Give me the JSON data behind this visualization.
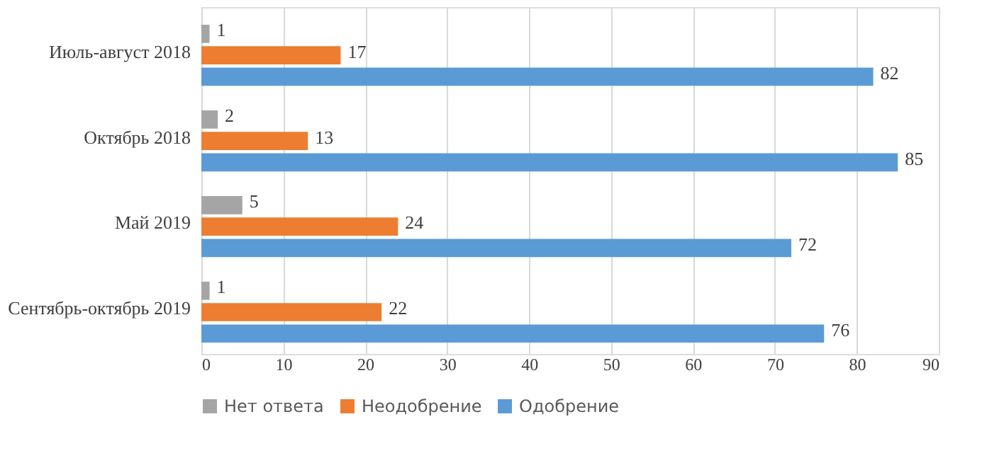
{
  "chart_data": {
    "type": "bar",
    "orientation": "horizontal",
    "categories": [
      "Июль-август 2018",
      "Октябрь 2018",
      "Май 2019",
      "Сентябрь-октябрь 2019"
    ],
    "series": [
      {
        "name": "Нет ответа",
        "color": "#a5a5a5",
        "values": [
          1,
          2,
          5,
          1
        ]
      },
      {
        "name": "Неодобрение",
        "color": "#ed7d31",
        "values": [
          17,
          13,
          24,
          22
        ]
      },
      {
        "name": "Одобрение",
        "color": "#5b9bd5",
        "values": [
          82,
          85,
          72,
          76
        ]
      }
    ],
    "xlim": [
      0,
      90
    ],
    "xticks": [
      0,
      10,
      20,
      30,
      40,
      50,
      60,
      70,
      80,
      90
    ],
    "grid": "x",
    "legend": "bottom",
    "data_labels": true
  }
}
